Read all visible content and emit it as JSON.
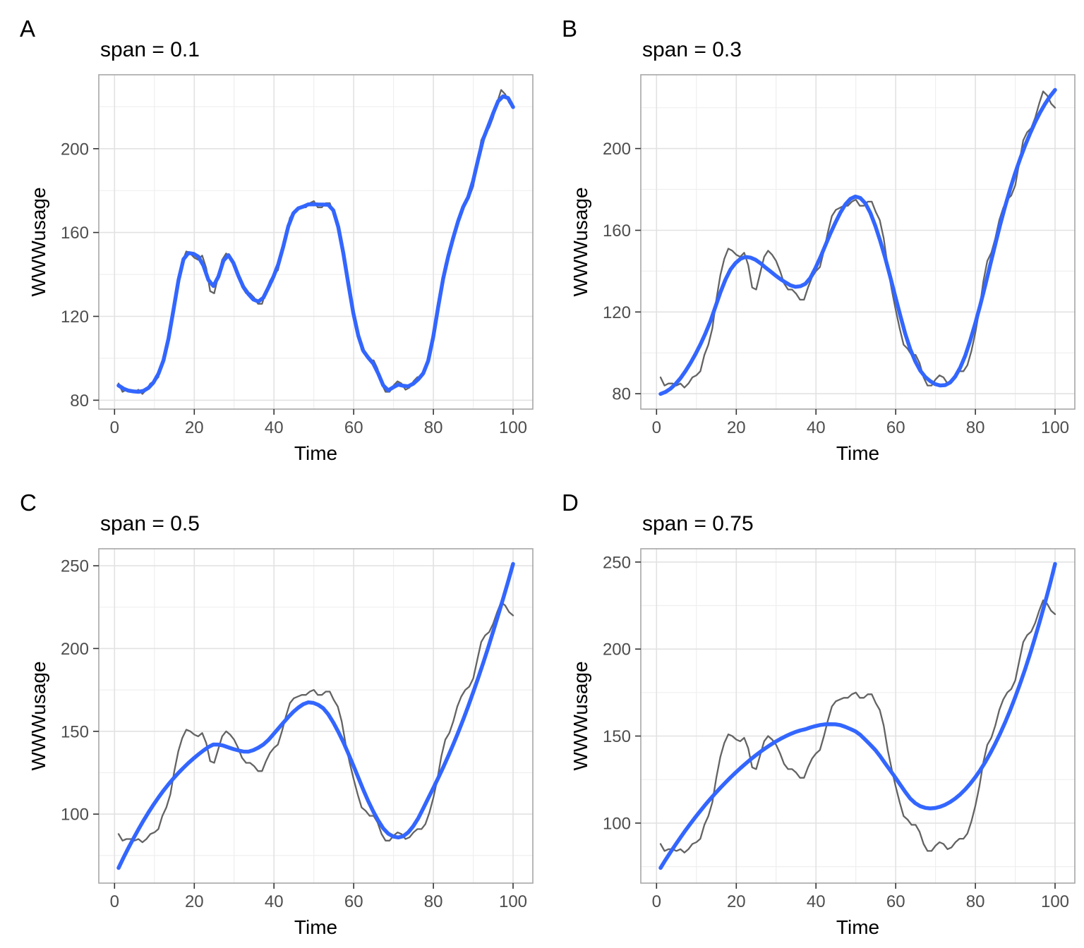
{
  "figure": {
    "background": "#FFFFFF",
    "description": "2x2 grid of LOESS smoothing comparisons on the WWWusage time series"
  },
  "chart_data": {
    "type": "line",
    "dataset": "WWWusage",
    "xlabel": "Time",
    "ylabel": "WWWusage",
    "x_ticks": [
      0,
      20,
      40,
      60,
      80,
      100
    ],
    "x_range": [
      1,
      100
    ],
    "x": [
      1,
      2,
      3,
      4,
      5,
      6,
      7,
      8,
      9,
      10,
      11,
      12,
      13,
      14,
      15,
      16,
      17,
      18,
      19,
      20,
      21,
      22,
      23,
      24,
      25,
      26,
      27,
      28,
      29,
      30,
      31,
      32,
      33,
      34,
      35,
      36,
      37,
      38,
      39,
      40,
      41,
      42,
      43,
      44,
      45,
      46,
      47,
      48,
      49,
      50,
      51,
      52,
      53,
      54,
      55,
      56,
      57,
      58,
      59,
      60,
      61,
      62,
      63,
      64,
      65,
      66,
      67,
      68,
      69,
      70,
      71,
      72,
      73,
      74,
      75,
      76,
      77,
      78,
      79,
      80,
      81,
      82,
      83,
      84,
      85,
      86,
      87,
      88,
      89,
      90,
      91,
      92,
      93,
      94,
      95,
      96,
      97,
      98,
      99,
      100
    ],
    "series": [
      {
        "name": "WWWusage data",
        "role": "raw-data-line",
        "color": "#636363",
        "values": [
          88,
          84,
          85,
          85,
          84,
          85,
          83,
          85,
          88,
          89,
          91,
          99,
          104,
          112,
          126,
          138,
          146,
          151,
          150,
          148,
          147,
          149,
          143,
          132,
          131,
          139,
          147,
          150,
          148,
          145,
          140,
          134,
          131,
          131,
          129,
          126,
          126,
          132,
          137,
          140,
          142,
          150,
          159,
          167,
          170,
          171,
          172,
          172,
          174,
          175,
          172,
          172,
          174,
          174,
          169,
          165,
          156,
          142,
          131,
          121,
          112,
          104,
          102,
          99,
          99,
          95,
          88,
          84,
          84,
          87,
          89,
          88,
          85,
          86,
          89,
          91,
          91,
          94,
          101,
          110,
          121,
          135,
          145,
          149,
          156,
          165,
          171,
          175,
          177,
          182,
          193,
          204,
          208,
          210,
          215,
          222,
          228,
          226,
          222,
          220
        ]
      }
    ],
    "smoother": {
      "method": "loess",
      "degree": 2,
      "eval_points": 80,
      "color": "#3366FF"
    },
    "panels": [
      {
        "letter": "A",
        "title": "span = 0.1",
        "span": 0.1,
        "y_ticks": [
          80,
          120,
          160,
          200
        ]
      },
      {
        "letter": "B",
        "title": "span = 0.3",
        "span": 0.3,
        "y_ticks": [
          80,
          120,
          160,
          200
        ]
      },
      {
        "letter": "C",
        "title": "span = 0.5",
        "span": 0.5,
        "y_ticks": [
          100,
          150,
          200,
          250
        ]
      },
      {
        "letter": "D",
        "title": "span = 0.75",
        "span": 0.75,
        "y_ticks": [
          100,
          150,
          200,
          250
        ]
      }
    ],
    "layout": {
      "grid": "2x2",
      "legend": "none",
      "grid_lines": "major+minor",
      "panel_border": true
    },
    "colors": {
      "data_line": "#636363",
      "smooth_line": "#3366FF",
      "grid_major": "#E2E2E2",
      "grid_minor": "#EFEFEF",
      "panel_border": "#A6A6A6",
      "tick_mark": "#333333",
      "tick_label": "#4D4D4D",
      "axis_title": "#000000"
    }
  }
}
